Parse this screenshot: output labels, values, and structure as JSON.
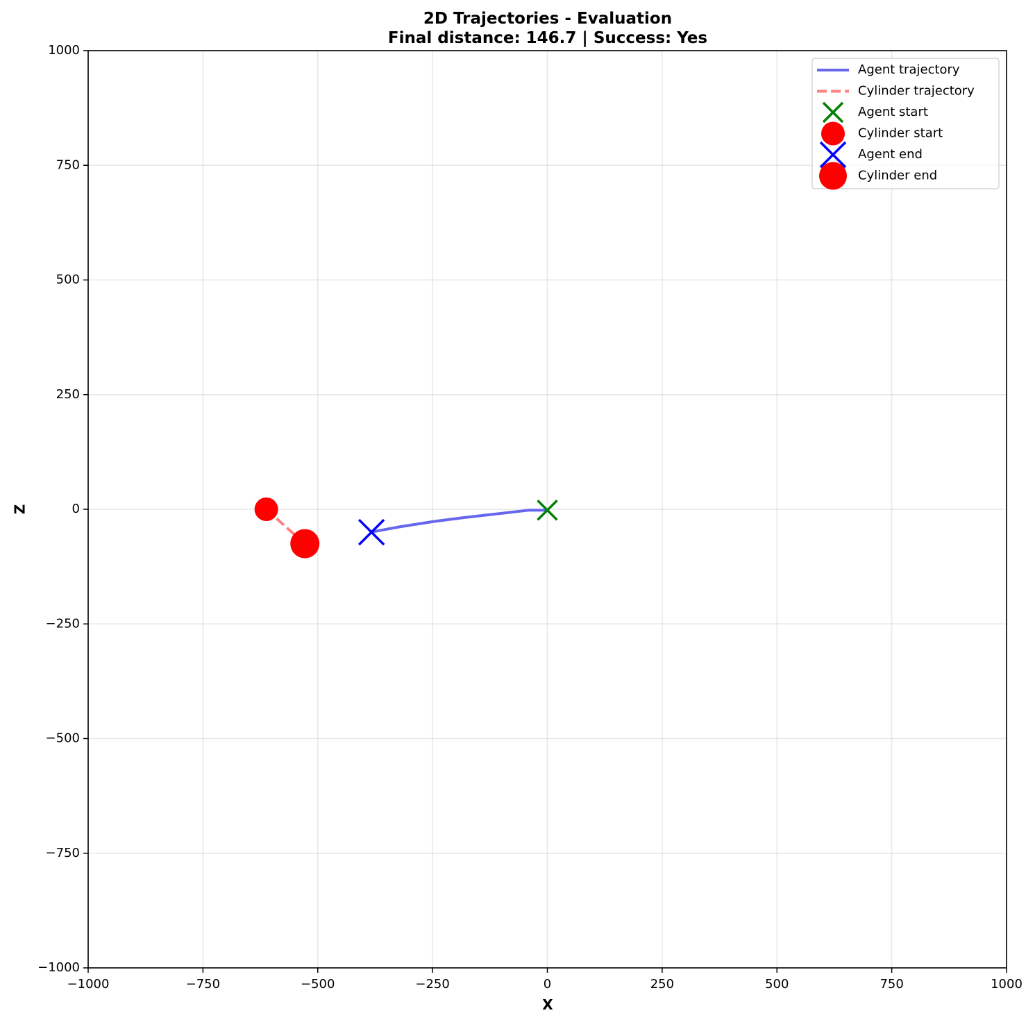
{
  "chart_data": {
    "type": "line",
    "title": "2D Trajectories - Evaluation",
    "subtitle": "Final distance: 146.7 | Success: Yes",
    "xlabel": "X",
    "ylabel": "Z",
    "xlim": [
      -1000,
      1000
    ],
    "ylim": [
      -1000,
      1000
    ],
    "xticks": [
      -1000,
      -750,
      -500,
      -250,
      0,
      250,
      500,
      750,
      1000
    ],
    "yticks": [
      -1000,
      -750,
      -500,
      -250,
      0,
      250,
      500,
      750,
      1000
    ],
    "xtick_labels": [
      "−1000",
      "−750",
      "−500",
      "−250",
      "0",
      "250",
      "500",
      "750",
      "1000"
    ],
    "ytick_labels": [
      "−1000",
      "−750",
      "−500",
      "−250",
      "0",
      "250",
      "500",
      "750",
      "1000"
    ],
    "grid": true,
    "legend_position": "top-right",
    "series": [
      {
        "name": "Agent trajectory",
        "kind": "line",
        "style": "solid",
        "color": "#6666ee",
        "x": [
          0,
          -40,
          -110,
          -180,
          -250,
          -320,
          -385
        ],
        "y": [
          -2,
          -2,
          -10,
          -18,
          -27,
          -38,
          -50
        ]
      },
      {
        "name": "Cylinder trajectory",
        "kind": "line",
        "style": "dashed",
        "color": "#ff8080",
        "x": [
          -612,
          -570,
          -528
        ],
        "y": [
          0,
          -38,
          -75
        ]
      },
      {
        "name": "Agent start",
        "kind": "marker",
        "marker": "x",
        "color": "#008000",
        "x": [
          0
        ],
        "y": [
          -2
        ]
      },
      {
        "name": "Cylinder start",
        "kind": "marker",
        "marker": "circle",
        "color": "#ff0000",
        "x": [
          -612
        ],
        "y": [
          0
        ]
      },
      {
        "name": "Agent end",
        "kind": "marker",
        "marker": "x-large",
        "color": "#0000ff",
        "x": [
          -383
        ],
        "y": [
          -50
        ]
      },
      {
        "name": "Cylinder end",
        "kind": "marker",
        "marker": "circle-large",
        "color": "#ff0000",
        "x": [
          -528
        ],
        "y": [
          -75
        ]
      }
    ]
  }
}
